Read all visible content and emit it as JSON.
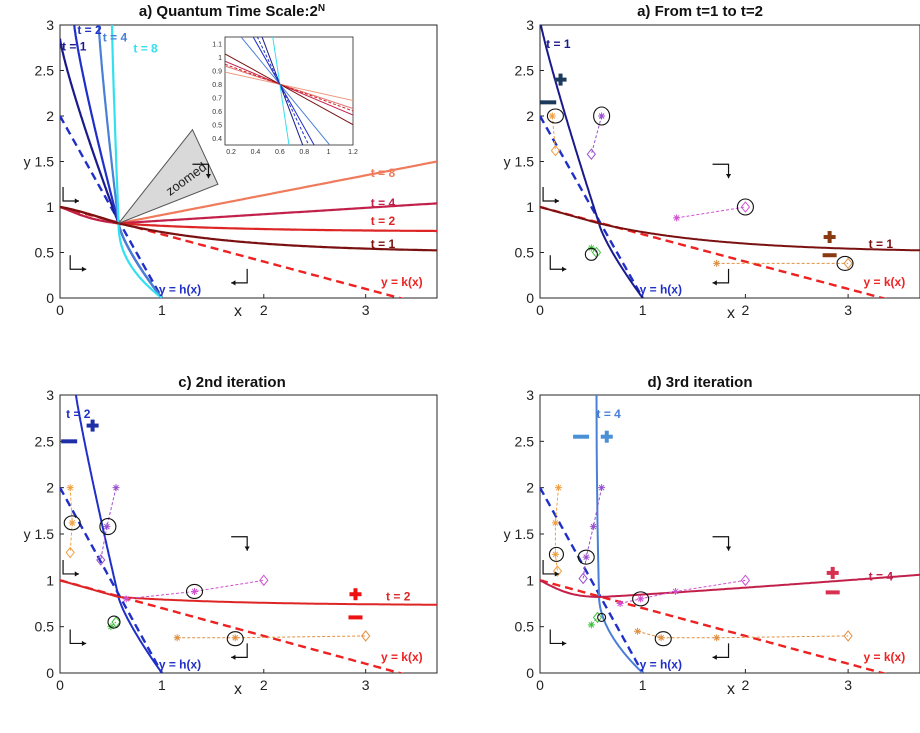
{
  "chart_data": [
    {
      "id": "p1",
      "type": "line",
      "title": "a) Quantum Time Scale:2",
      "title_sup": "N",
      "xlabel": "x",
      "ylabel": "y",
      "xlim": [
        0,
        3.7
      ],
      "ylim": [
        0,
        3
      ],
      "xticks": [
        0,
        1,
        2,
        3
      ],
      "yticks": [
        0,
        0.5,
        1,
        1.5,
        2,
        2.5,
        3
      ],
      "ytick_labels": [
        "0",
        "0.5",
        "1",
        "y 1.5",
        "2",
        "2.5",
        "3"
      ],
      "h_curves": [
        {
          "name": "t = 1",
          "t": 1,
          "color": "#1a1a8c"
        },
        {
          "name": "t = 2",
          "t": 2,
          "color": "#1f2fc8"
        },
        {
          "name": "t = 4",
          "t": 4,
          "color": "#4a7fd6"
        },
        {
          "name": "t = 8",
          "t": 8,
          "color": "#33e0f0"
        }
      ],
      "k_curves": [
        {
          "name": "t = 8",
          "t": 8,
          "color": "#ef7a5c"
        },
        {
          "name": "t = 4",
          "t": 4,
          "color": "#c2204a"
        },
        {
          "name": "t = 2",
          "t": 2,
          "color": "#dd2525"
        },
        {
          "name": "t = 1",
          "t": 1,
          "color": "#7a1010"
        }
      ],
      "h_label": "y = h(x)",
      "k_label": "y = k(x)",
      "zoom_label": "zoomed",
      "inset": {
        "xlim": [
          0.15,
          1.2
        ],
        "ylim": [
          0.35,
          1.15
        ],
        "xticks": [
          0.2,
          0.4,
          0.6,
          0.8,
          1,
          1.2
        ],
        "xtick_labels": [
          "0.2",
          "0.4",
          "0.6",
          "0.8",
          "1",
          "1.2"
        ],
        "yticks": [
          0.4,
          0.5,
          0.6,
          0.7,
          0.8,
          0.9,
          1,
          1.1
        ],
        "ytick_labels": [
          "0.4",
          "0.5",
          "0.6",
          "0.7",
          "0.8",
          "0.9",
          "1",
          "1.1"
        ]
      }
    },
    {
      "id": "p2",
      "type": "line",
      "title": "a) From t=1 to t=2",
      "xlabel": "x",
      "ylabel": "y",
      "xlim": [
        0,
        3.7
      ],
      "ylim": [
        0,
        3
      ],
      "xticks": [
        0,
        1,
        2,
        3
      ],
      "yticks": [
        0,
        0.5,
        1,
        1.5,
        2,
        2.5,
        3
      ],
      "ytick_labels": [
        "0",
        "0.5",
        "1",
        "y 1.5",
        "2",
        "2.5",
        "3"
      ],
      "t": 1,
      "h_color": "#1a1a8c",
      "k_color": "#7a1010",
      "h_t_label": "t = 1",
      "k_t_label": "t = 1",
      "h_label": "y = h(x)",
      "k_label": "y = k(x)",
      "plus_minus_colors": {
        "h": "#1b3a5c",
        "k": "#8a3a10"
      }
    },
    {
      "id": "p3",
      "type": "line",
      "title": "c) 2nd iteration",
      "xlabel": "x",
      "ylabel": "y",
      "xlim": [
        0,
        3.7
      ],
      "ylim": [
        0,
        3
      ],
      "xticks": [
        0,
        1,
        2,
        3
      ],
      "yticks": [
        0,
        0.5,
        1,
        1.5,
        2,
        2.5,
        3
      ],
      "ytick_labels": [
        "0",
        "0.5",
        "1",
        "y 1.5",
        "2",
        "2.5",
        "3"
      ],
      "t": 2,
      "h_color": "#1f2fc8",
      "k_color": "#dd2525",
      "h_t_label": "t = 2",
      "k_t_label": "t = 2",
      "h_label": "y = h(x)",
      "k_label": "y = k(x)",
      "plus_minus_colors": {
        "h": "#1f2fa8",
        "k": "#ee1111"
      }
    },
    {
      "id": "p4",
      "type": "line",
      "title": "d) 3rd iteration",
      "xlabel": "x",
      "ylabel": "y",
      "xlim": [
        0,
        3.7
      ],
      "ylim": [
        0,
        3
      ],
      "xticks": [
        0,
        1,
        2,
        3
      ],
      "yticks": [
        0,
        0.5,
        1,
        1.5,
        2,
        2.5,
        3
      ],
      "ytick_labels": [
        "0",
        "0.5",
        "1",
        "y 1.5",
        "2",
        "2.5",
        "3"
      ],
      "t": 4,
      "h_color": "#4a7fd6",
      "k_color": "#c2204a",
      "h_t_label": "t = 4",
      "k_t_label": "t = 4",
      "h_label": "y = h(x)",
      "k_label": "y = k(x)",
      "plus_minus_colors": {
        "h": "#4a90d6",
        "k": "#d83050"
      }
    }
  ]
}
